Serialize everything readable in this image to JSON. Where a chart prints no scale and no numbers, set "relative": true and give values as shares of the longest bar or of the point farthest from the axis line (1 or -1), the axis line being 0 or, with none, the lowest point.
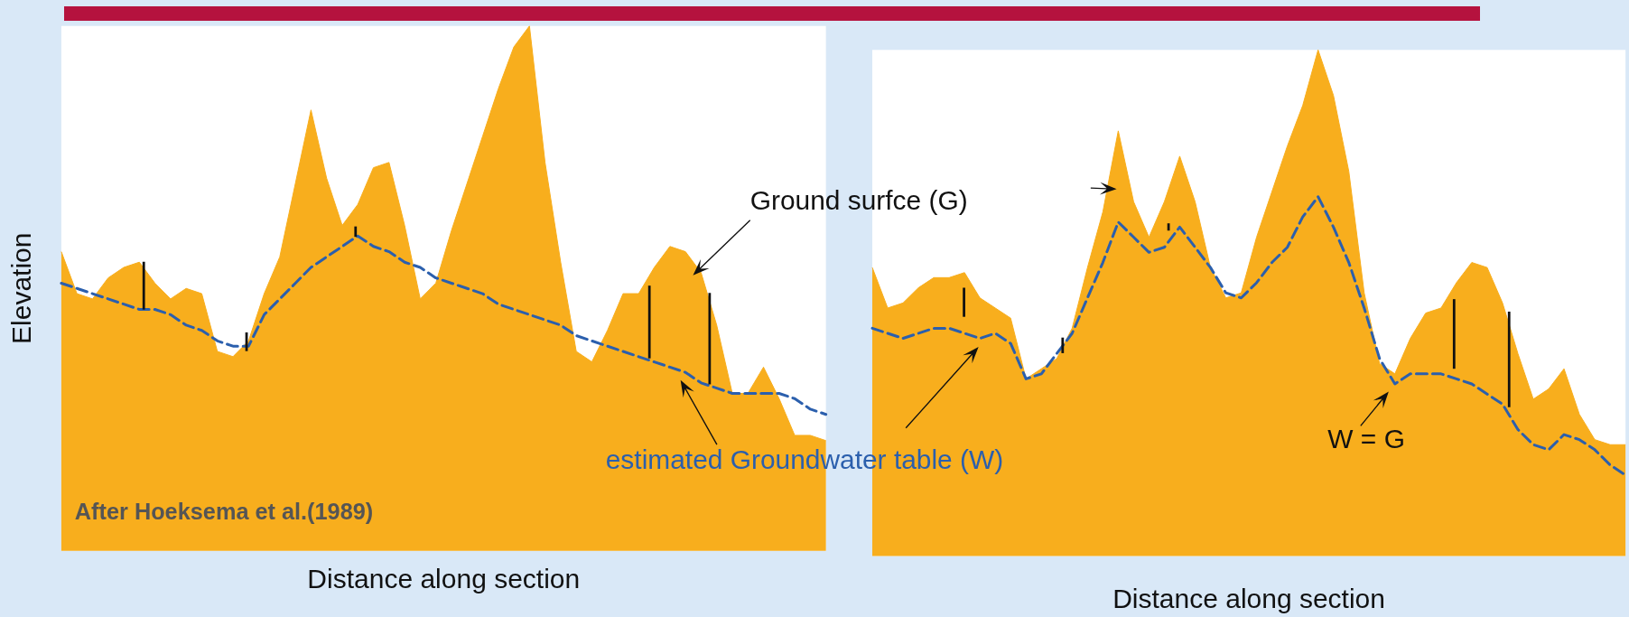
{
  "chart_data": [
    {
      "type": "area",
      "relative": true,
      "tick_labels": false,
      "marker": "none",
      "xlabel": "Distance along section",
      "ylabel": "Elevation",
      "annotations": [
        "Ground surfce (G)",
        "estimated Groundwater table (W)",
        "After Hoeksema et al.(1989)"
      ],
      "categories": [
        null,
        null,
        null,
        null,
        null,
        null,
        null,
        null,
        null,
        null,
        null,
        null,
        null,
        null,
        null,
        null,
        null,
        null,
        null,
        null,
        null,
        null,
        null,
        null,
        null,
        null,
        null,
        null,
        null,
        null,
        null,
        null,
        null,
        null,
        null,
        null,
        null,
        null,
        null,
        null,
        null,
        null,
        null,
        null,
        null,
        null,
        null,
        null,
        null,
        null
      ],
      "series": [
        {
          "type": "area",
          "color": "#f8ae1d",
          "values": [
            0.57,
            0.49,
            0.48,
            0.52,
            0.54,
            0.55,
            0.51,
            0.48,
            0.5,
            0.49,
            0.38,
            0.37,
            0.4,
            0.49,
            0.56,
            0.7,
            0.84,
            0.71,
            0.62,
            0.66,
            0.73,
            0.74,
            0.62,
            0.48,
            0.51,
            0.61,
            0.7,
            0.79,
            0.88,
            0.96,
            1,
            0.74,
            0.55,
            0.38,
            0.36,
            0.42,
            0.49,
            0.49,
            0.54,
            0.58,
            0.57,
            0.53,
            0.43,
            0.3,
            0.3,
            0.35,
            0.29,
            0.22,
            0.22,
            0.21
          ]
        },
        {
          "type": "line",
          "color": "#2b5fad",
          "line_style": "dashed",
          "values": [
            0.51,
            0.5,
            0.49,
            0.48,
            0.47,
            0.46,
            0.46,
            0.45,
            0.43,
            0.42,
            0.4,
            0.39,
            0.39,
            0.45,
            0.48,
            0.51,
            0.54,
            0.56,
            0.58,
            0.6,
            0.58,
            0.57,
            0.55,
            0.54,
            0.52,
            0.51,
            0.5,
            0.49,
            0.47,
            0.46,
            0.45,
            0.44,
            0.43,
            0.41,
            0.4,
            0.39,
            0.38,
            0.37,
            0.36,
            0.35,
            0.34,
            0.32,
            0.31,
            0.3,
            0.3,
            0.3,
            0.3,
            0.29,
            0.27,
            0.26
          ]
        }
      ]
    },
    {
      "type": "area",
      "relative": true,
      "tick_labels": false,
      "marker": "none",
      "xlabel": "Distance along section",
      "annotations": [
        "W = G"
      ],
      "categories": [
        null,
        null,
        null,
        null,
        null,
        null,
        null,
        null,
        null,
        null,
        null,
        null,
        null,
        null,
        null,
        null,
        null,
        null,
        null,
        null,
        null,
        null,
        null,
        null,
        null,
        null,
        null,
        null,
        null,
        null,
        null,
        null,
        null,
        null,
        null,
        null,
        null,
        null,
        null,
        null,
        null,
        null,
        null,
        null,
        null,
        null,
        null,
        null,
        null,
        null
      ],
      "series": [
        {
          "type": "area",
          "color": "#f8ae1d",
          "values": [
            0.57,
            0.49,
            0.5,
            0.53,
            0.55,
            0.55,
            0.56,
            0.51,
            0.49,
            0.47,
            0.35,
            0.37,
            0.39,
            0.45,
            0.57,
            0.68,
            0.84,
            0.7,
            0.63,
            0.7,
            0.79,
            0.7,
            0.57,
            0.51,
            0.52,
            0.63,
            0.72,
            0.81,
            0.89,
            1,
            0.91,
            0.76,
            0.52,
            0.38,
            0.36,
            0.43,
            0.48,
            0.49,
            0.54,
            0.58,
            0.57,
            0.5,
            0.4,
            0.31,
            0.33,
            0.37,
            0.28,
            0.23,
            0.22,
            0.22
          ]
        },
        {
          "type": "line",
          "color": "#2b5fad",
          "line_style": "dashed",
          "values": [
            0.45,
            0.44,
            0.43,
            0.44,
            0.45,
            0.45,
            0.44,
            0.43,
            0.44,
            0.42,
            0.35,
            0.36,
            0.4,
            0.44,
            0.51,
            0.58,
            0.66,
            0.63,
            0.6,
            0.61,
            0.65,
            0.61,
            0.57,
            0.52,
            0.51,
            0.54,
            0.58,
            0.61,
            0.67,
            0.71,
            0.65,
            0.58,
            0.49,
            0.39,
            0.34,
            0.36,
            0.36,
            0.36,
            0.35,
            0.34,
            0.32,
            0.3,
            0.25,
            0.22,
            0.21,
            0.24,
            0.23,
            0.21,
            0.18,
            0.16
          ]
        }
      ]
    }
  ]
}
